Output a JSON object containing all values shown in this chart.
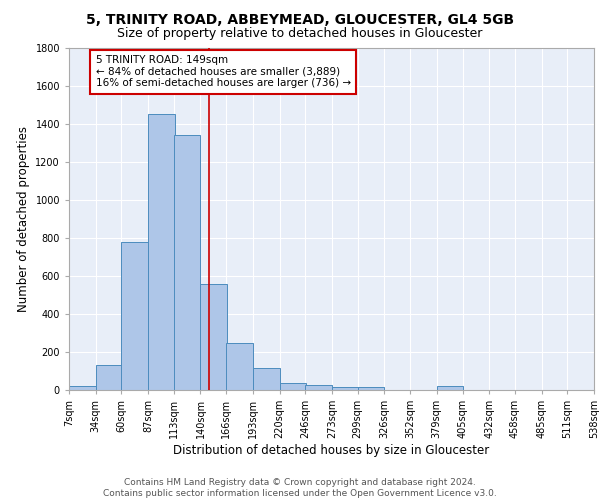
{
  "title": "5, TRINITY ROAD, ABBEYMEAD, GLOUCESTER, GL4 5GB",
  "subtitle": "Size of property relative to detached houses in Gloucester",
  "xlabel": "Distribution of detached houses by size in Gloucester",
  "ylabel": "Number of detached properties",
  "bar_left_edges": [
    7,
    34,
    60,
    87,
    113,
    140,
    166,
    193,
    220,
    246,
    273,
    299,
    326,
    352,
    379,
    405,
    432,
    458,
    485,
    511
  ],
  "bar_heights": [
    20,
    130,
    780,
    1450,
    1340,
    555,
    245,
    115,
    35,
    25,
    15,
    15,
    0,
    0,
    20,
    0,
    0,
    0,
    0,
    0
  ],
  "bin_width": 27,
  "bar_color": "#aec6e8",
  "bar_edge_color": "#4c8cbe",
  "bg_color": "#e8eef8",
  "grid_color": "#ffffff",
  "property_line_x": 149,
  "property_line_color": "#cc0000",
  "annotation_text": "5 TRINITY ROAD: 149sqm\n← 84% of detached houses are smaller (3,889)\n16% of semi-detached houses are larger (736) →",
  "annotation_box_color": "#ffffff",
  "annotation_box_edge_color": "#cc0000",
  "tick_labels": [
    "7sqm",
    "34sqm",
    "60sqm",
    "87sqm",
    "113sqm",
    "140sqm",
    "166sqm",
    "193sqm",
    "220sqm",
    "246sqm",
    "273sqm",
    "299sqm",
    "326sqm",
    "352sqm",
    "379sqm",
    "405sqm",
    "432sqm",
    "458sqm",
    "485sqm",
    "511sqm",
    "538sqm"
  ],
  "ylim": [
    0,
    1800
  ],
  "yticks": [
    0,
    200,
    400,
    600,
    800,
    1000,
    1200,
    1400,
    1600,
    1800
  ],
  "footer_text": "Contains HM Land Registry data © Crown copyright and database right 2024.\nContains public sector information licensed under the Open Government Licence v3.0.",
  "title_fontsize": 10,
  "subtitle_fontsize": 9,
  "xlabel_fontsize": 8.5,
  "ylabel_fontsize": 8.5,
  "tick_fontsize": 7,
  "annotation_fontsize": 7.5,
  "footer_fontsize": 6.5
}
